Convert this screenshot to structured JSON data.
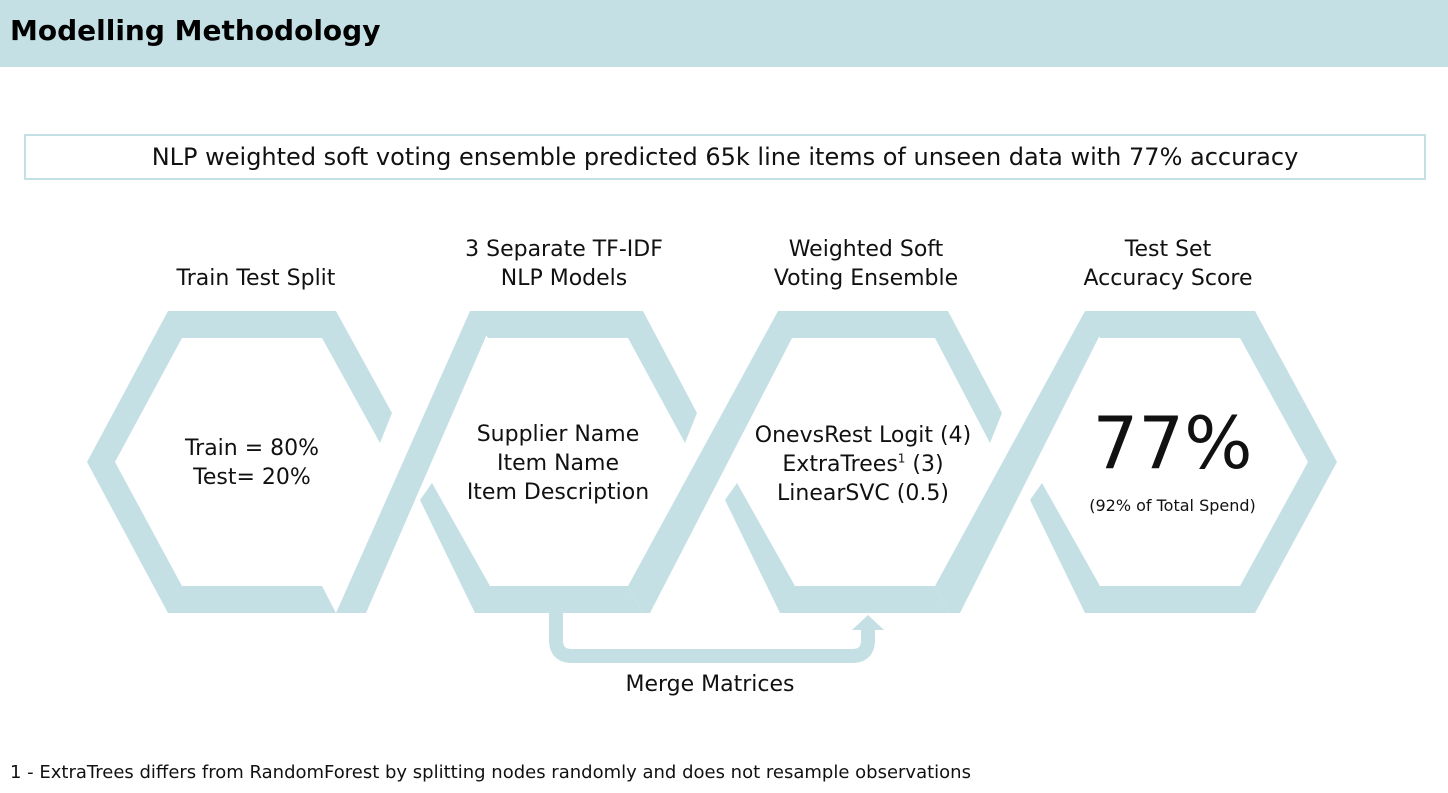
{
  "header": {
    "title": "Modelling Methodology"
  },
  "summary": "NLP weighted soft voting ensemble predicted 65k line items of unseen data with 77% accuracy",
  "colors": {
    "accent": "#c5e0e4"
  },
  "steps": [
    {
      "title_lines": [
        "Train Test Split"
      ],
      "body_lines": [
        "Train = 80%",
        "Test= 20%"
      ]
    },
    {
      "title_lines": [
        "3 Separate TF-IDF",
        "NLP Models"
      ],
      "body_lines": [
        "Supplier Name",
        "Item Name",
        "Item Description"
      ]
    },
    {
      "title_lines": [
        "Weighted Soft",
        "Voting Ensemble"
      ],
      "body_lines": [
        "OnevsRest Logit (4)",
        "ExtraTrees",
        "LinearSVC (0.5)"
      ],
      "superscript": "1",
      "superscript_suffix": " (3)"
    },
    {
      "title_lines": [
        "Test Set",
        "Accuracy Score"
      ],
      "big_value": "77%",
      "note": "(92% of Total Spend)"
    }
  ],
  "merge_label": "Merge Matrices",
  "footnote": "1 - ExtraTrees differs from RandomForest by splitting nodes randomly and does not resample observations"
}
